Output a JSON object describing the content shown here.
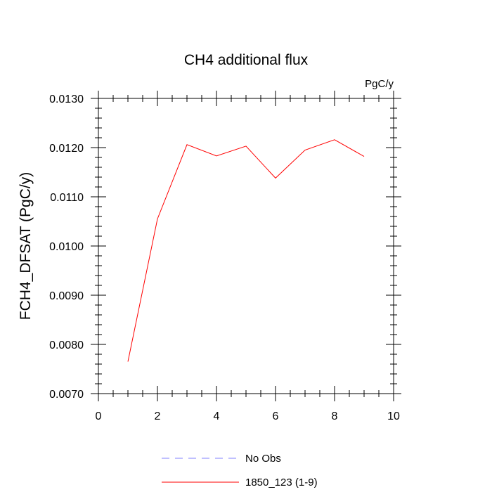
{
  "chart_data": {
    "type": "line",
    "title": "CH4 additional flux",
    "units_label": "PgC/y",
    "ylabel": "FCH4_DFSAT  (PgC/y)",
    "xlabel": "",
    "xlim": [
      0,
      10
    ],
    "ylim": [
      0.007,
      0.013
    ],
    "x_ticks": [
      0,
      2,
      4,
      6,
      8,
      10
    ],
    "x_tick_labels": [
      "0",
      "2",
      "4",
      "6",
      "8",
      "10"
    ],
    "y_ticks": [
      0.007,
      0.008,
      0.009,
      0.01,
      0.011,
      0.012,
      0.013
    ],
    "y_tick_labels": [
      "0.0070",
      "0.0080",
      "0.0090",
      "0.0100",
      "0.0110",
      "0.0120",
      "0.0130"
    ],
    "grid": false,
    "legend_position": "bottom",
    "series": [
      {
        "name": "1850_123 (1-9)",
        "color": "#ff0000",
        "style": "solid",
        "x": [
          1,
          2,
          3,
          4,
          5,
          6,
          7,
          8,
          9
        ],
        "values": [
          0.00765,
          0.01055,
          0.01206,
          0.01183,
          0.01203,
          0.01138,
          0.01195,
          0.01216,
          0.01182
        ]
      }
    ],
    "legend": [
      {
        "label": "No Obs",
        "color": "#8080ff",
        "style": "dashed"
      },
      {
        "label": "1850_123 (1-9)",
        "color": "#ff0000",
        "style": "solid"
      }
    ]
  }
}
